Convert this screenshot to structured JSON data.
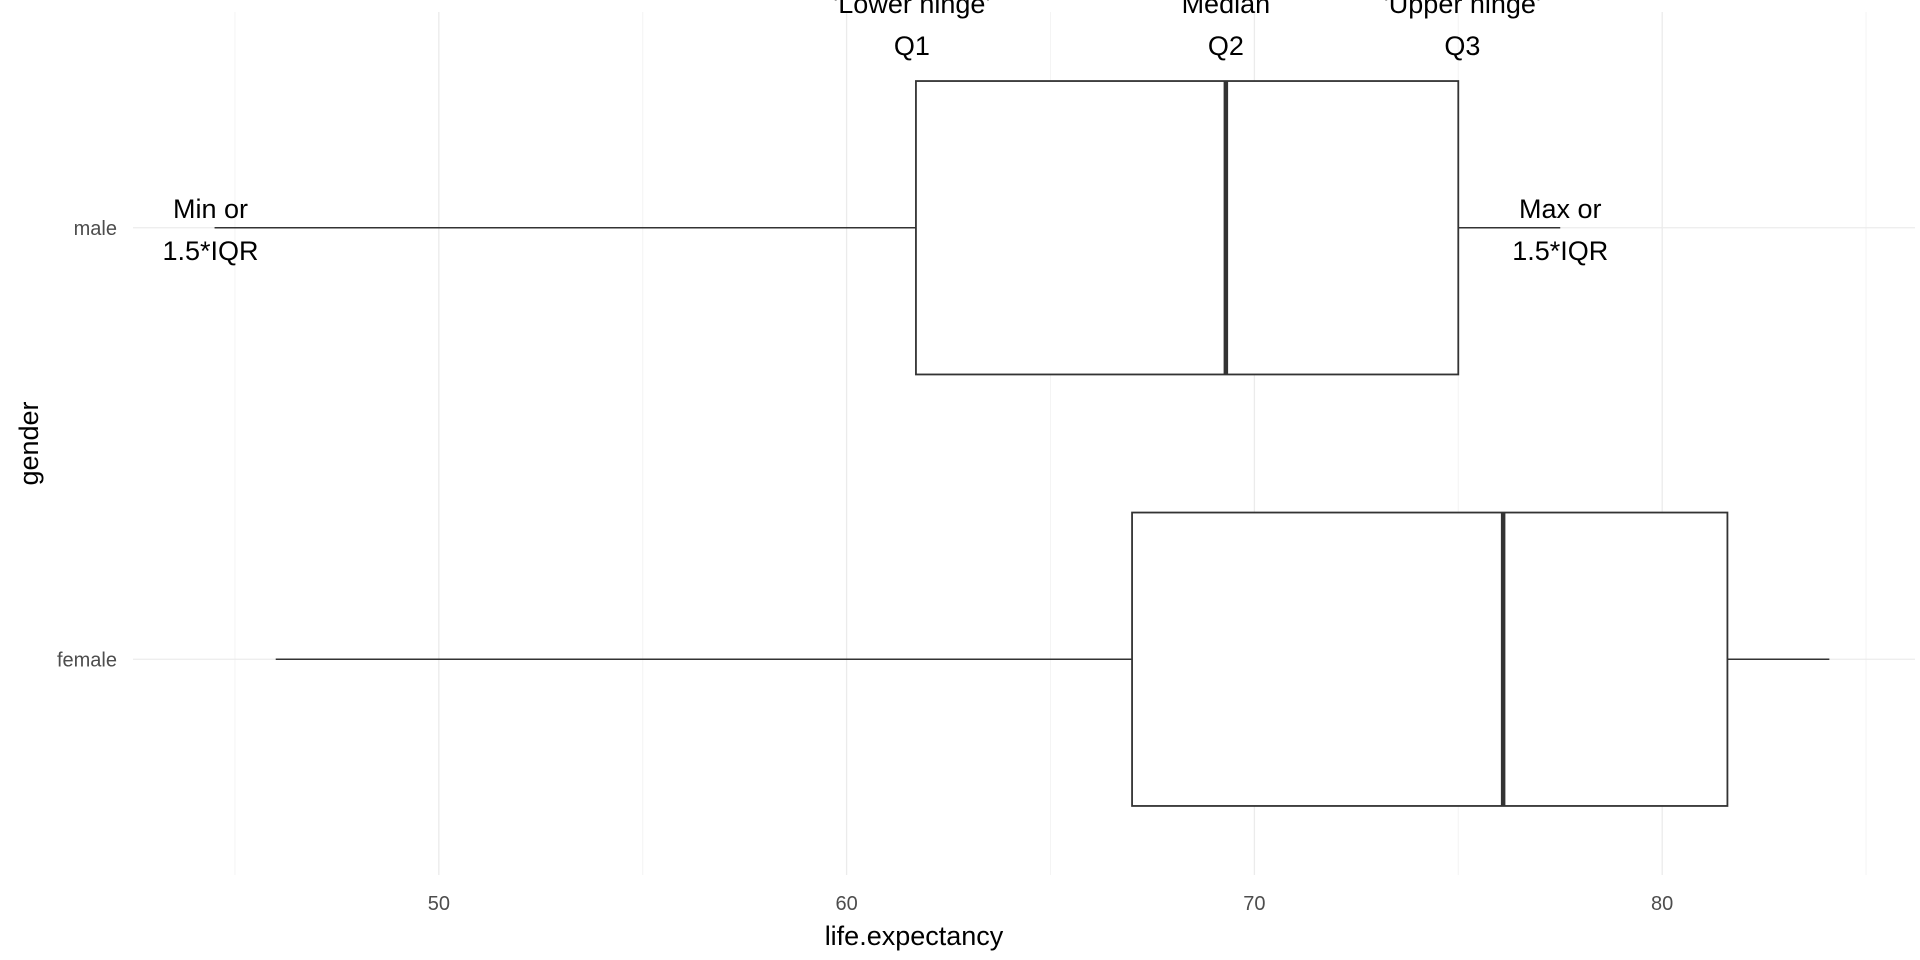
{
  "chart_data": {
    "type": "boxplot",
    "orientation": "horizontal",
    "xlabel": "life.expectancy",
    "ylabel": "gender",
    "xlim": [
      42.5,
      86.2
    ],
    "x_ticks": [
      50,
      60,
      70,
      80
    ],
    "x_tick_labels": [
      "50",
      "60",
      "70",
      "80"
    ],
    "grid": true,
    "categories": [
      "male",
      "female"
    ],
    "boxes": [
      {
        "category": "male",
        "whisker_low": 44.5,
        "q1": 61.7,
        "median": 69.3,
        "q3": 75.0,
        "whisker_high": 77.5
      },
      {
        "category": "female",
        "whisker_low": 46.0,
        "q1": 67.0,
        "median": 76.1,
        "q3": 81.6,
        "whisker_high": 84.1
      }
    ],
    "annotations": [
      {
        "lines": [
          "'Lower hinge'",
          "Q1"
        ],
        "x": 61.6,
        "category": "male",
        "anchor": "above"
      },
      {
        "lines": [
          "Median",
          "Q2"
        ],
        "x": 69.3,
        "category": "male",
        "anchor": "above"
      },
      {
        "lines": [
          "'Upper hinge'",
          "Q3"
        ],
        "x": 75.1,
        "category": "male",
        "anchor": "above"
      },
      {
        "lines": [
          "Min or",
          "1.5*IQR"
        ],
        "x": 44.4,
        "category": "male",
        "anchor": "at"
      },
      {
        "lines": [
          "Max or",
          "1.5*IQR"
        ],
        "x": 77.5,
        "category": "male",
        "anchor": "at"
      }
    ]
  }
}
